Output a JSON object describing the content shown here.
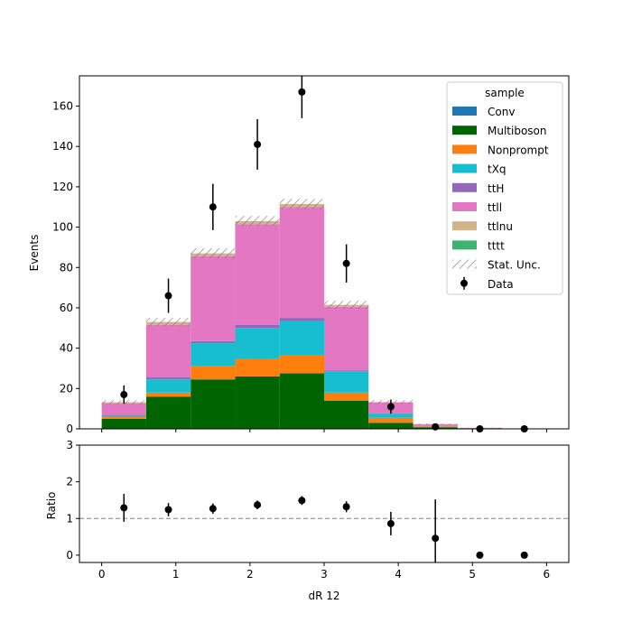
{
  "chart_data": {
    "type": "bar",
    "stacked": true,
    "xlabel": "dR 12",
    "main_panel": {
      "ylabel": "Events",
      "ylim": [
        0,
        175
      ],
      "yticks": [
        0,
        20,
        40,
        60,
        80,
        100,
        120,
        140,
        160
      ]
    },
    "ratio_panel": {
      "ylabel": "Ratio",
      "ylim": [
        -0.2,
        3
      ],
      "yticks": [
        0,
        1,
        2,
        3
      ],
      "reference_line": 1
    },
    "xlim": [
      -0.3,
      6.3
    ],
    "xticks": [
      0,
      1,
      2,
      3,
      4,
      5,
      6
    ],
    "bin_edges": [
      0,
      0.6,
      1.2,
      1.8,
      2.4,
      3.0,
      3.6,
      4.2,
      4.8,
      5.4,
      6.0
    ],
    "series": [
      {
        "name": "Conv",
        "color": "#1f77b4",
        "values": [
          0,
          0,
          0,
          0,
          0,
          0,
          0,
          0,
          0,
          0
        ]
      },
      {
        "name": "Multiboson",
        "color": "#006400",
        "values": [
          5,
          16,
          24.5,
          26,
          27.5,
          14,
          3,
          0.8,
          0.3,
          0
        ]
      },
      {
        "name": "Nonprompt",
        "color": "#ff7f0e",
        "values": [
          1,
          2,
          6.5,
          8.5,
          9,
          4,
          2.5,
          0.4,
          0,
          0
        ]
      },
      {
        "name": "tXq",
        "color": "#17becf",
        "values": [
          0.5,
          6.5,
          11.5,
          15.5,
          17,
          10.5,
          2,
          0.3,
          0,
          0
        ]
      },
      {
        "name": "ttH",
        "color": "#9467bd",
        "values": [
          0.2,
          1,
          1,
          1.5,
          1.5,
          0.5,
          0.1,
          0,
          0,
          0
        ]
      },
      {
        "name": "ttll",
        "color": "#e377c2",
        "values": [
          6,
          26,
          42,
          50,
          55,
          31.5,
          5.5,
          0.8,
          0.2,
          0
        ]
      },
      {
        "name": "ttlnu",
        "color": "#d2b48c",
        "values": [
          0.5,
          1.5,
          1.5,
          1.5,
          1.5,
          1,
          0.2,
          0.1,
          0,
          0
        ]
      },
      {
        "name": "tttt",
        "color": "#3cb371",
        "values": [
          0,
          0,
          0,
          0,
          0,
          0,
          0,
          0,
          0,
          0
        ]
      }
    ],
    "stat_unc": [
      1,
      2,
      2.5,
      2.5,
      2.5,
      2,
      1,
      0.3,
      0.1,
      0
    ],
    "data": {
      "name": "Data",
      "x": [
        0.3,
        0.9,
        1.5,
        2.1,
        2.7,
        3.3,
        3.9,
        4.5,
        5.1,
        5.7
      ],
      "y": [
        17,
        66,
        110,
        141,
        167,
        82,
        11,
        1,
        0,
        0
      ],
      "yerr": [
        4.5,
        8.5,
        11.5,
        12.5,
        13,
        9.5,
        3.5,
        1.5,
        0,
        0
      ]
    },
    "ratio": {
      "x": [
        0.3,
        0.9,
        1.5,
        2.1,
        2.7,
        3.3,
        3.9,
        4.5,
        5.1,
        5.7
      ],
      "y": [
        1.29,
        1.24,
        1.27,
        1.37,
        1.49,
        1.32,
        0.86,
        0.46,
        0,
        0
      ],
      "yerr": [
        0.38,
        0.18,
        0.14,
        0.12,
        0.12,
        0.15,
        0.32,
        1.06,
        0,
        0
      ]
    },
    "legend": {
      "title": "sample",
      "placement": "upper right",
      "stat_unc_label": "Stat. Unc."
    }
  }
}
